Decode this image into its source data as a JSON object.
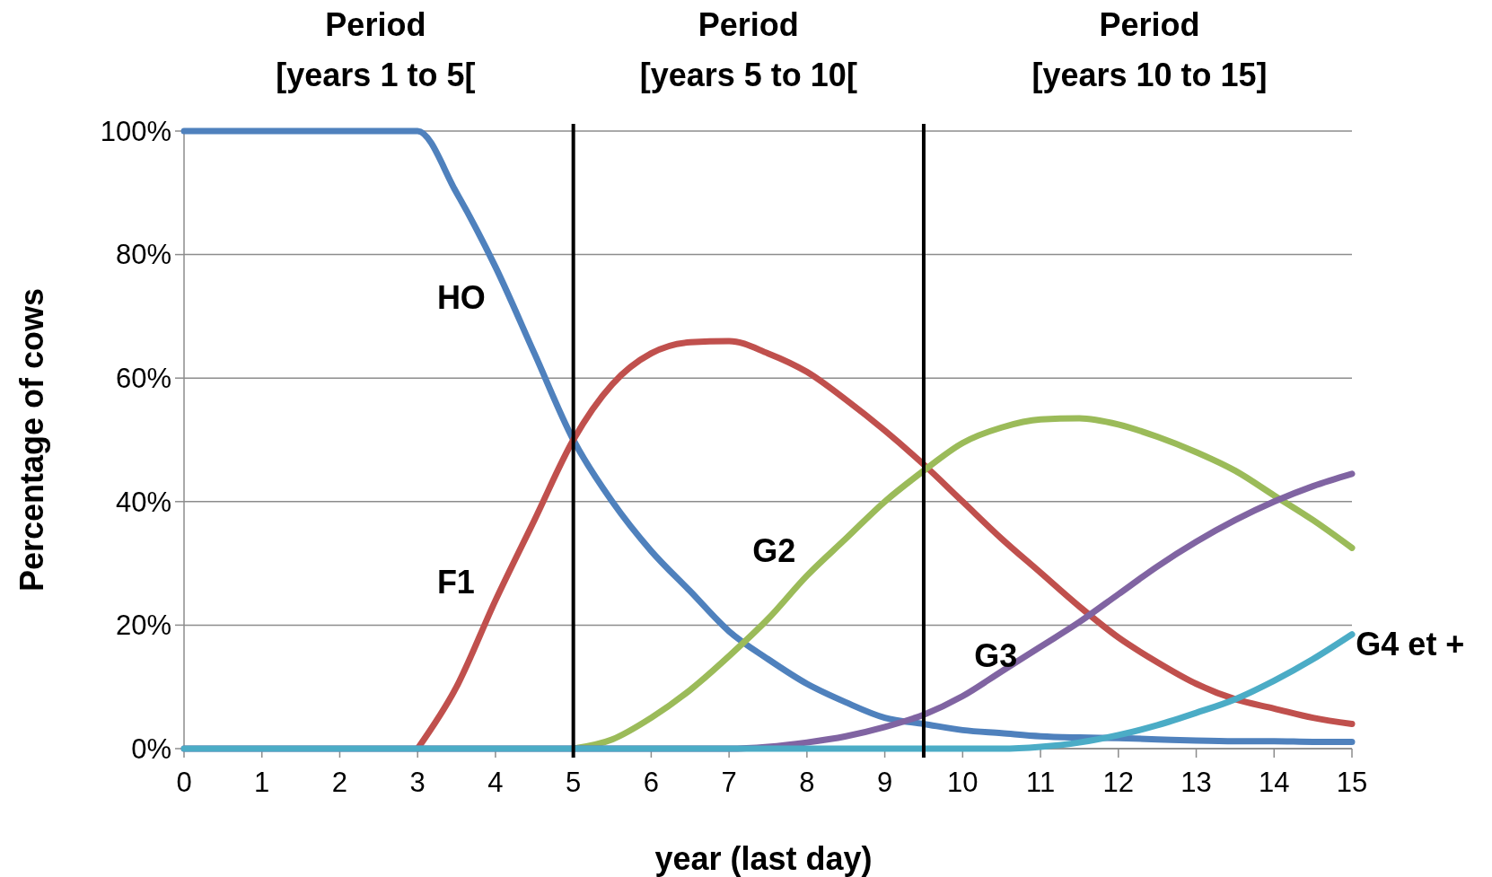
{
  "chart_data": {
    "type": "line",
    "xlabel": "year (last day)",
    "ylabel": "Percentage of cows",
    "annotations": [
      "Period\n[years 1 to 5[",
      "Period\n[years 5 to 10[",
      "Period\n[years 10 to 15]"
    ],
    "x": [
      0,
      0.5,
      1,
      1.5,
      2,
      2.5,
      3,
      3.5,
      4,
      4.5,
      5,
      5.5,
      6,
      6.5,
      7,
      7.5,
      8,
      8.5,
      9,
      9.5,
      10,
      10.5,
      11,
      11.5,
      12,
      12.5,
      13,
      13.5,
      14,
      14.5,
      15
    ],
    "xlim": [
      0,
      15
    ],
    "xticks": [
      0,
      1,
      2,
      3,
      4,
      5,
      6,
      7,
      8,
      9,
      10,
      11,
      12,
      13,
      14,
      15
    ],
    "ylim": [
      0,
      100
    ],
    "yticks": [
      {
        "value": 0,
        "label": "0%"
      },
      {
        "value": 20,
        "label": "20%"
      },
      {
        "value": 40,
        "label": "40%"
      },
      {
        "value": 60,
        "label": "60%"
      },
      {
        "value": 80,
        "label": "80%"
      },
      {
        "value": 100,
        "label": "100%"
      }
    ],
    "grid": "y",
    "marker": "none",
    "line_style": "solid",
    "ref_lines": [
      {
        "axis": "x",
        "value": 5,
        "color": "#000000"
      },
      {
        "axis": "x",
        "value": 9.5,
        "color": "#000000"
      }
    ],
    "series": [
      {
        "name": "HO",
        "color": "#4f81bd",
        "values": [
          100,
          100,
          100,
          100,
          100,
          100,
          100,
          90,
          78,
          64,
          50,
          40,
          32,
          25.5,
          19,
          14.5,
          10.5,
          7.5,
          5,
          4,
          3,
          2.5,
          2,
          1.8,
          1.7,
          1.5,
          1.3,
          1.2,
          1.2,
          1.1,
          1.1
        ]
      },
      {
        "name": "F1",
        "color": "#c0504d",
        "values": [
          null,
          null,
          null,
          null,
          null,
          null,
          0,
          10,
          24,
          37,
          50,
          59,
          64,
          65.8,
          66,
          64,
          61,
          56.5,
          51.5,
          46,
          40,
          34,
          28.5,
          23,
          18,
          14,
          10.5,
          8,
          6.5,
          5,
          4
        ]
      },
      {
        "name": "G2",
        "color": "#9bbb59",
        "values": [
          null,
          null,
          null,
          null,
          null,
          null,
          null,
          null,
          null,
          null,
          0,
          1.5,
          5,
          9.5,
          15,
          21,
          28,
          34,
          40,
          45,
          49.5,
          52,
          53.3,
          53.5,
          52.5,
          50.5,
          48,
          45,
          41,
          37,
          32.5
        ]
      },
      {
        "name": "G3",
        "color": "#8064a2",
        "values": [
          0,
          0,
          0,
          0,
          0,
          0,
          0,
          0,
          0,
          0,
          0,
          0,
          0,
          0,
          0,
          0.3,
          1,
          2,
          3.5,
          5.5,
          8.5,
          12.5,
          16.5,
          20.5,
          25,
          29.5,
          33.5,
          37,
          40,
          42.5,
          44.5
        ]
      },
      {
        "name": "G4 et +",
        "color": "#4bacc6",
        "values": [
          0,
          0,
          0,
          0,
          0,
          0,
          0,
          0,
          0,
          0,
          0,
          0,
          0,
          0,
          0,
          0,
          0,
          0,
          0,
          0,
          0,
          0,
          0.3,
          1,
          2.2,
          3.8,
          5.8,
          8,
          11,
          14.5,
          18.5
        ]
      }
    ]
  }
}
